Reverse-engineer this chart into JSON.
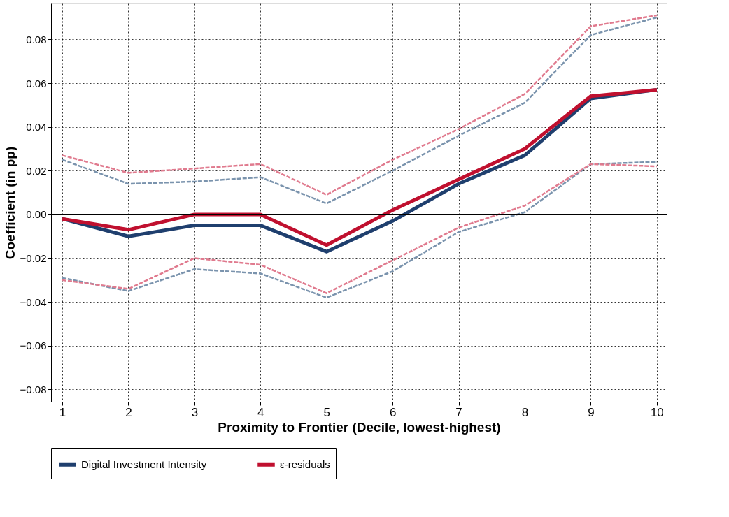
{
  "chart_data": {
    "type": "line",
    "xlabel": "Proximity to Frontier (Decile, lowest-highest)",
    "ylabel": "Coefficient (in pp)",
    "x": [
      1,
      2,
      3,
      4,
      5,
      6,
      7,
      8,
      9,
      10
    ],
    "series": [
      {
        "color": "#7a93ad",
        "line_style": "dashed",
        "values": [
          0.025,
          0.014,
          0.015,
          0.017,
          0.005,
          0.02,
          0.036,
          0.051,
          0.082,
          0.09
        ]
      },
      {
        "color": "#7a93ad",
        "line_style": "dashed",
        "values": [
          -0.029,
          -0.035,
          -0.025,
          -0.027,
          -0.038,
          -0.026,
          -0.008,
          0.001,
          0.023,
          0.024
        ]
      },
      {
        "color": "#e07a8e",
        "line_style": "dashed",
        "values": [
          0.027,
          0.019,
          0.021,
          0.023,
          0.009,
          0.025,
          0.039,
          0.055,
          0.086,
          0.091
        ]
      },
      {
        "color": "#e07a8e",
        "line_style": "dashed",
        "values": [
          -0.03,
          -0.034,
          -0.02,
          -0.023,
          -0.036,
          -0.021,
          -0.006,
          0.004,
          0.023,
          0.022
        ]
      },
      {
        "name": "Digital Investment Intensity",
        "color": "#1f3f6e",
        "line_style": "solid",
        "values": [
          -0.002,
          -0.01,
          -0.005,
          -0.005,
          -0.017,
          -0.003,
          0.014,
          0.027,
          0.053,
          0.057
        ]
      },
      {
        "name": "ε-residuals",
        "color": "#c0102f",
        "line_style": "solid",
        "values": [
          -0.002,
          -0.007,
          0.0,
          0.0,
          -0.014,
          0.002,
          0.016,
          0.03,
          0.054,
          0.057
        ]
      }
    ],
    "xlim": [
      0.83,
      10.15
    ],
    "xticks": [
      1,
      2,
      3,
      4,
      5,
      6,
      7,
      8,
      9,
      10
    ],
    "ylim": [
      -0.0856,
      0.0964
    ],
    "yticks": [
      -0.08,
      -0.06,
      -0.04,
      -0.02,
      {
        "value": 0,
        "label": "0.00"
      },
      0.02,
      0.04,
      0.06,
      0.08
    ],
    "ref_lines": [
      {
        "axis": "y",
        "value": 0,
        "color": "#000000"
      }
    ],
    "grid": true,
    "legend": "bottom",
    "marker": "none"
  }
}
